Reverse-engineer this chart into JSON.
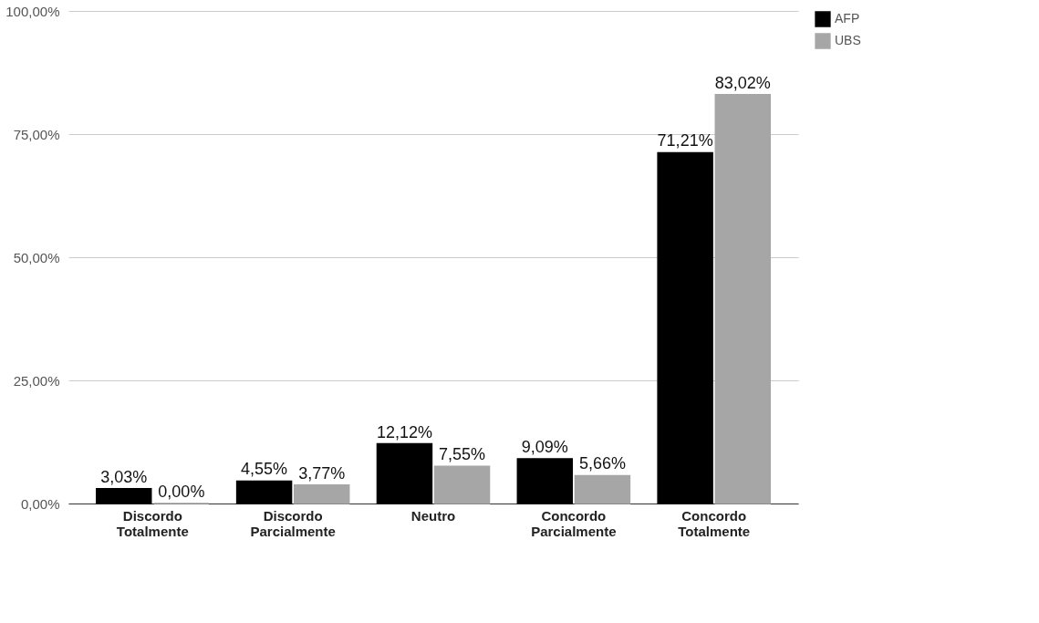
{
  "chart_data": {
    "type": "bar",
    "categories": [
      "Discordo Totalmente",
      "Discordo Parcialmente",
      "Neutro",
      "Concordo Parcialmente",
      "Concordo Totalmente"
    ],
    "series": [
      {
        "name": "AFP",
        "color": "#000000",
        "values": [
          3.03,
          4.55,
          12.12,
          9.09,
          71.21
        ],
        "value_labels": [
          "3,03%",
          "4,55%",
          "12,12%",
          "9,09%",
          "71,21%"
        ]
      },
      {
        "name": "UBS",
        "color": "#a6a6a6",
        "values": [
          0.0,
          3.77,
          7.55,
          5.66,
          83.02
        ],
        "value_labels": [
          "0,00%",
          "3,77%",
          "7,55%",
          "5,66%",
          "83,02%"
        ]
      }
    ],
    "ylim": [
      0,
      100
    ],
    "yticks": [
      {
        "value": 0,
        "label": "0,00%"
      },
      {
        "value": 25,
        "label": "25,00%"
      },
      {
        "value": 50,
        "label": "50,00%"
      },
      {
        "value": 75,
        "label": "75,00%"
      },
      {
        "value": 100,
        "label": "100,00%"
      }
    ],
    "grid": "y",
    "legend": "top right"
  }
}
